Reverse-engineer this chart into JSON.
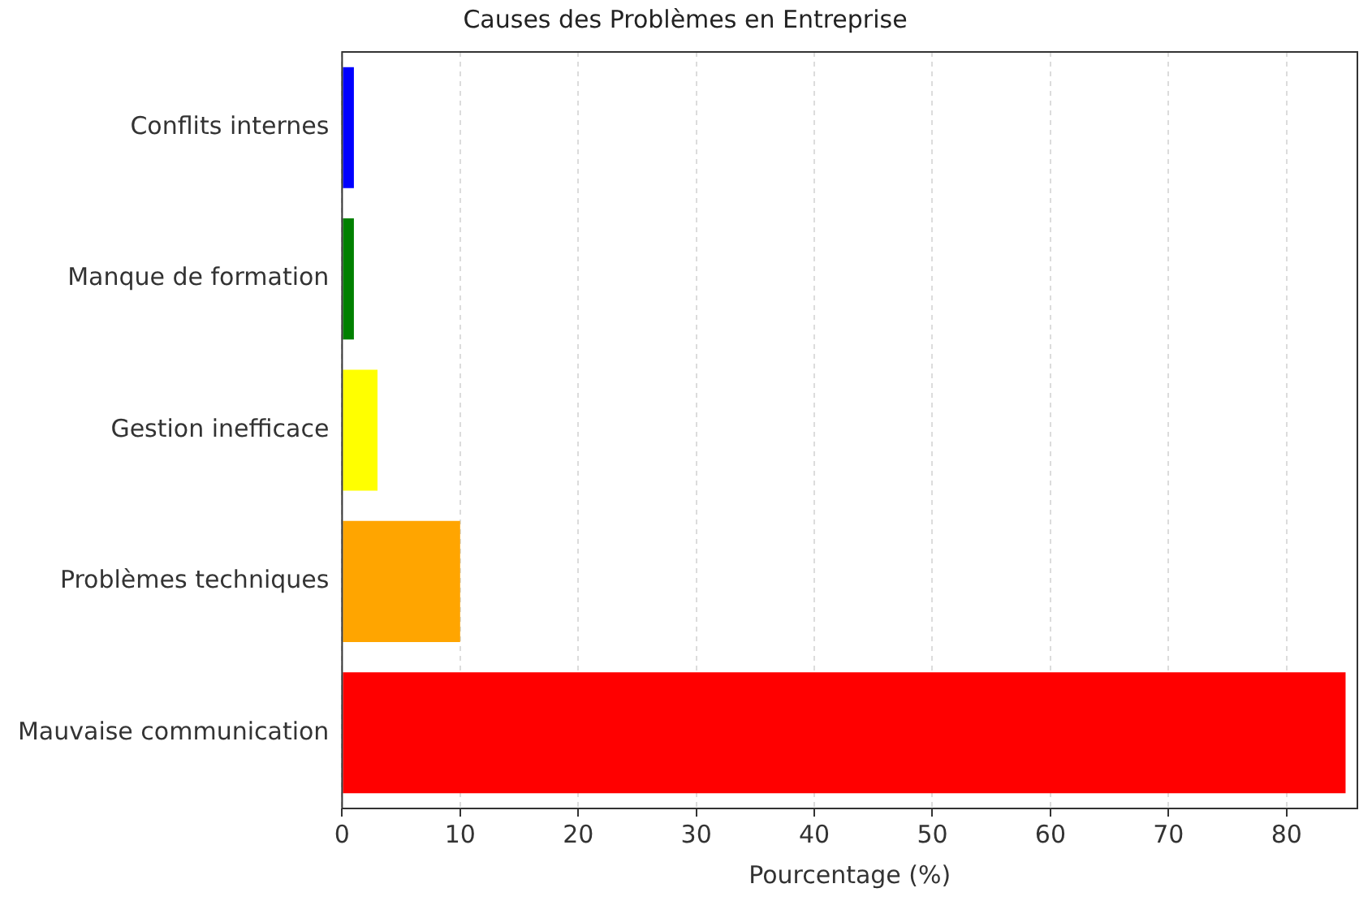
{
  "chart_data": {
    "type": "bar",
    "orientation": "horizontal",
    "title": "Causes des Problèmes en Entreprise",
    "xlabel": "Pourcentage (%)",
    "categories": [
      "Conflits internes",
      "Manque de formation",
      "Gestion inefficace",
      "Problèmes techniques",
      "Mauvaise communication"
    ],
    "values": [
      1,
      1,
      3,
      10,
      85
    ],
    "colors": [
      "#0000ff",
      "#008000",
      "#ffff00",
      "#ffa500",
      "#ff0000"
    ],
    "xlim": [
      0,
      86
    ],
    "xticks": [
      0,
      10,
      20,
      30,
      40,
      50,
      60,
      70,
      80
    ],
    "grid": "x",
    "legend": false
  }
}
